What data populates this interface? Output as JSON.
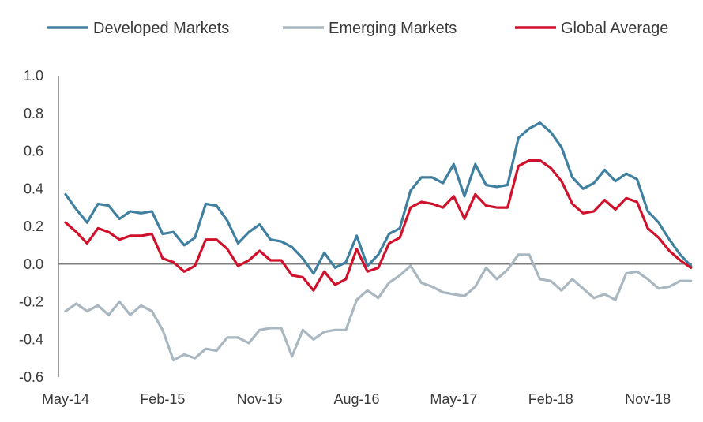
{
  "chart_data": {
    "type": "line",
    "title": "",
    "xlabel": "",
    "ylabel": "",
    "ylim": [
      -0.6,
      1.0
    ],
    "yticks": [
      "1.0",
      "0.8",
      "0.6",
      "0.4",
      "0.2",
      "0.0",
      "-0.2",
      "-0.4",
      "-0.6"
    ],
    "xticks": [
      "May-14",
      "Feb-15",
      "Nov-15",
      "Aug-16",
      "May-17",
      "Feb-18",
      "Nov-18"
    ],
    "x": [
      "May-14",
      "Jun-14",
      "Jul-14",
      "Aug-14",
      "Sep-14",
      "Oct-14",
      "Nov-14",
      "Dec-14",
      "Jan-15",
      "Feb-15",
      "Mar-15",
      "Apr-15",
      "May-15",
      "Jun-15",
      "Jul-15",
      "Aug-15",
      "Sep-15",
      "Oct-15",
      "Nov-15",
      "Dec-15",
      "Jan-16",
      "Feb-16",
      "Mar-16",
      "Apr-16",
      "May-16",
      "Jun-16",
      "Jul-16",
      "Aug-16",
      "Sep-16",
      "Oct-16",
      "Nov-16",
      "Dec-16",
      "Jan-17",
      "Feb-17",
      "Mar-17",
      "Apr-17",
      "May-17",
      "Jun-17",
      "Jul-17",
      "Aug-17",
      "Sep-17",
      "Oct-17",
      "Nov-17",
      "Dec-17",
      "Jan-18",
      "Feb-18",
      "Mar-18",
      "Apr-18",
      "May-18",
      "Jun-18",
      "Jul-18",
      "Aug-18",
      "Sep-18",
      "Oct-18",
      "Nov-18",
      "Dec-18",
      "Jan-19",
      "Feb-19",
      "Mar-19"
    ],
    "legend_position": "top",
    "grid": false,
    "series": [
      {
        "name": "Developed Markets",
        "color": "#3f7fa0",
        "values": [
          0.37,
          0.29,
          0.22,
          0.32,
          0.31,
          0.24,
          0.28,
          0.27,
          0.28,
          0.16,
          0.17,
          0.1,
          0.14,
          0.32,
          0.31,
          0.23,
          0.11,
          0.17,
          0.21,
          0.13,
          0.12,
          0.09,
          0.03,
          -0.05,
          0.06,
          -0.02,
          0.01,
          0.15,
          -0.01,
          0.05,
          0.16,
          0.19,
          0.39,
          0.46,
          0.46,
          0.43,
          0.53,
          0.36,
          0.53,
          0.42,
          0.41,
          0.42,
          0.67,
          0.72,
          0.75,
          0.7,
          0.62,
          0.46,
          0.4,
          0.43,
          0.5,
          0.44,
          0.48,
          0.45,
          0.28,
          0.22,
          0.13,
          0.05,
          -0.01
        ]
      },
      {
        "name": "Emerging Markets",
        "color": "#a9b7c0",
        "values": [
          -0.25,
          -0.21,
          -0.25,
          -0.22,
          -0.27,
          -0.2,
          -0.27,
          -0.22,
          -0.25,
          -0.35,
          -0.51,
          -0.48,
          -0.5,
          -0.45,
          -0.46,
          -0.39,
          -0.39,
          -0.42,
          -0.35,
          -0.34,
          -0.34,
          -0.49,
          -0.35,
          -0.4,
          -0.36,
          -0.35,
          -0.35,
          -0.19,
          -0.14,
          -0.18,
          -0.1,
          -0.06,
          -0.01,
          -0.1,
          -0.12,
          -0.15,
          -0.16,
          -0.17,
          -0.12,
          -0.02,
          -0.08,
          -0.03,
          0.05,
          0.05,
          -0.08,
          -0.09,
          -0.14,
          -0.08,
          -0.13,
          -0.18,
          -0.16,
          -0.19,
          -0.05,
          -0.04,
          -0.08,
          -0.13,
          -0.12,
          -0.09,
          -0.09
        ]
      },
      {
        "name": "Global Average",
        "color": "#d0112b",
        "values": [
          0.22,
          0.17,
          0.11,
          0.19,
          0.17,
          0.13,
          0.15,
          0.15,
          0.16,
          0.03,
          0.01,
          -0.04,
          -0.01,
          0.13,
          0.13,
          0.08,
          -0.01,
          0.02,
          0.07,
          0.02,
          0.02,
          -0.06,
          -0.07,
          -0.14,
          -0.04,
          -0.11,
          -0.08,
          0.08,
          -0.04,
          -0.02,
          0.11,
          0.14,
          0.3,
          0.33,
          0.32,
          0.3,
          0.36,
          0.24,
          0.37,
          0.31,
          0.3,
          0.3,
          0.52,
          0.55,
          0.55,
          0.51,
          0.44,
          0.32,
          0.27,
          0.28,
          0.34,
          0.29,
          0.35,
          0.33,
          0.19,
          0.14,
          0.07,
          0.02,
          -0.02
        ]
      }
    ]
  }
}
